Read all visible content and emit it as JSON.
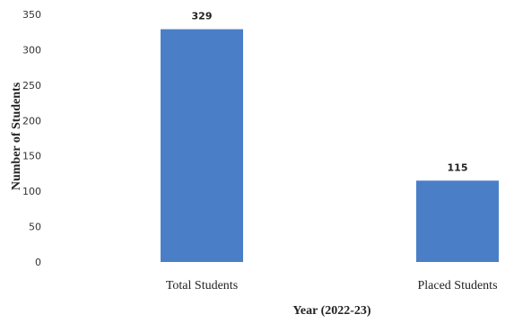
{
  "chart_data": {
    "type": "bar",
    "categories": [
      "Total Students",
      "Placed Students"
    ],
    "values": [
      329,
      115
    ],
    "data_labels": [
      "329",
      "115"
    ],
    "xlabel": "Year (2022-23)",
    "ylabel": "Number of Students",
    "ylim": [
      0,
      350
    ],
    "yticks": [
      "0",
      "50",
      "100",
      "150",
      "200",
      "250",
      "300",
      "350"
    ],
    "bar_color": "#4a7fc8",
    "grid": false,
    "legend": "none"
  }
}
